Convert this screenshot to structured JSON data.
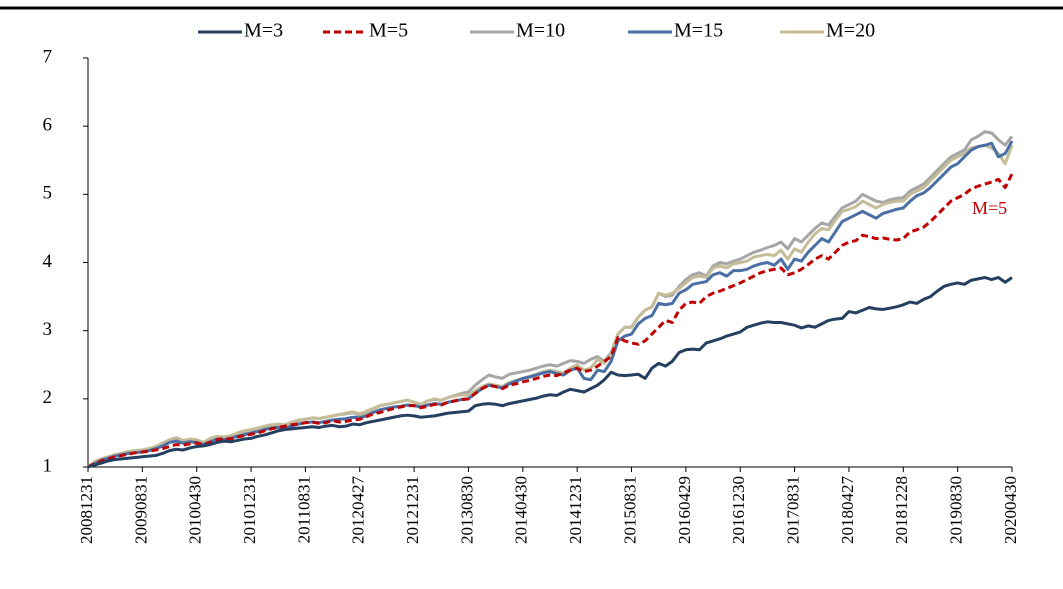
{
  "chart_data": {
    "type": "line",
    "annotation": "M=5",
    "ylim": [
      1,
      7
    ],
    "yticks": [
      1,
      2,
      3,
      4,
      5,
      6,
      7
    ],
    "categories": [
      "20081231",
      null,
      null,
      null,
      null,
      null,
      null,
      null,
      "20090831",
      null,
      null,
      null,
      null,
      null,
      null,
      null,
      "20100430",
      null,
      null,
      null,
      null,
      null,
      null,
      null,
      "20101231",
      null,
      null,
      null,
      null,
      null,
      null,
      null,
      "20110831",
      null,
      null,
      null,
      null,
      null,
      null,
      null,
      "20120427",
      null,
      null,
      null,
      null,
      null,
      null,
      null,
      "20121231",
      null,
      null,
      null,
      null,
      null,
      null,
      null,
      "20130830",
      null,
      null,
      null,
      null,
      null,
      null,
      null,
      "20140430",
      null,
      null,
      null,
      null,
      null,
      null,
      null,
      "20141231",
      null,
      null,
      null,
      null,
      null,
      null,
      null,
      "20150831",
      null,
      null,
      null,
      null,
      null,
      null,
      null,
      "20160429",
      null,
      null,
      null,
      null,
      null,
      null,
      null,
      "20161230",
      null,
      null,
      null,
      null,
      null,
      null,
      null,
      "20170831",
      null,
      null,
      null,
      null,
      null,
      null,
      null,
      "20180427",
      null,
      null,
      null,
      null,
      null,
      null,
      null,
      "20181228",
      null,
      null,
      null,
      null,
      null,
      null,
      null,
      "20190830",
      null,
      null,
      null,
      null,
      null,
      null,
      null,
      "20200430"
    ],
    "series": [
      {
        "name": "M=3",
        "color": "#243f60",
        "dashed": false,
        "values": [
          1.0,
          1.03,
          1.06,
          1.09,
          1.11,
          1.12,
          1.13,
          1.14,
          1.15,
          1.16,
          1.17,
          1.2,
          1.24,
          1.26,
          1.25,
          1.28,
          1.3,
          1.31,
          1.33,
          1.36,
          1.38,
          1.37,
          1.39,
          1.41,
          1.42,
          1.45,
          1.47,
          1.5,
          1.53,
          1.55,
          1.56,
          1.57,
          1.58,
          1.59,
          1.58,
          1.6,
          1.61,
          1.59,
          1.6,
          1.63,
          1.62,
          1.65,
          1.67,
          1.69,
          1.71,
          1.73,
          1.75,
          1.76,
          1.75,
          1.73,
          1.74,
          1.75,
          1.77,
          1.79,
          1.8,
          1.81,
          1.82,
          1.9,
          1.92,
          1.93,
          1.92,
          1.9,
          1.93,
          1.95,
          1.97,
          1.99,
          2.01,
          2.04,
          2.06,
          2.05,
          2.1,
          2.14,
          2.12,
          2.1,
          2.15,
          2.2,
          2.28,
          2.39,
          2.35,
          2.34,
          2.35,
          2.36,
          2.3,
          2.45,
          2.52,
          2.48,
          2.55,
          2.68,
          2.72,
          2.73,
          2.72,
          2.82,
          2.85,
          2.88,
          2.92,
          2.95,
          2.98,
          3.05,
          3.08,
          3.11,
          3.13,
          3.12,
          3.12,
          3.1,
          3.08,
          3.04,
          3.07,
          3.05,
          3.1,
          3.15,
          3.17,
          3.18,
          3.28,
          3.26,
          3.3,
          3.34,
          3.32,
          3.31,
          3.33,
          3.35,
          3.38,
          3.42,
          3.4,
          3.46,
          3.5,
          3.58,
          3.65,
          3.68,
          3.7,
          3.68,
          3.74,
          3.76,
          3.78,
          3.75,
          3.78,
          3.71,
          3.78
        ]
      },
      {
        "name": "M=5",
        "color": "#c00000",
        "dashed": true,
        "values": [
          1.0,
          1.05,
          1.09,
          1.12,
          1.15,
          1.17,
          1.19,
          1.21,
          1.22,
          1.23,
          1.25,
          1.27,
          1.3,
          1.33,
          1.32,
          1.34,
          1.35,
          1.33,
          1.36,
          1.4,
          1.42,
          1.41,
          1.44,
          1.46,
          1.48,
          1.5,
          1.53,
          1.56,
          1.58,
          1.6,
          1.62,
          1.63,
          1.65,
          1.66,
          1.64,
          1.65,
          1.68,
          1.66,
          1.67,
          1.69,
          1.7,
          1.74,
          1.78,
          1.8,
          1.83,
          1.86,
          1.88,
          1.9,
          1.9,
          1.87,
          1.89,
          1.92,
          1.91,
          1.95,
          1.97,
          1.99,
          2.0,
          2.08,
          2.15,
          2.2,
          2.18,
          2.15,
          2.2,
          2.22,
          2.25,
          2.27,
          2.3,
          2.33,
          2.35,
          2.34,
          2.38,
          2.42,
          2.45,
          2.4,
          2.42,
          2.48,
          2.55,
          2.62,
          2.9,
          2.85,
          2.82,
          2.8,
          2.85,
          2.95,
          3.05,
          3.15,
          3.12,
          3.3,
          3.4,
          3.42,
          3.4,
          3.5,
          3.55,
          3.58,
          3.62,
          3.66,
          3.7,
          3.75,
          3.8,
          3.85,
          3.88,
          3.9,
          3.92,
          3.82,
          3.85,
          3.9,
          3.97,
          4.05,
          4.1,
          4.05,
          4.15,
          4.25,
          4.3,
          4.32,
          4.4,
          4.38,
          4.35,
          4.36,
          4.34,
          4.33,
          4.35,
          4.45,
          4.48,
          4.52,
          4.6,
          4.7,
          4.8,
          4.9,
          4.95,
          5.0,
          5.08,
          5.12,
          5.15,
          5.18,
          5.22,
          5.1,
          5.3
        ]
      },
      {
        "name": "M=10",
        "color": "#a6a6a6",
        "dashed": false,
        "values": [
          1.0,
          1.08,
          1.12,
          1.15,
          1.18,
          1.2,
          1.22,
          1.24,
          1.25,
          1.27,
          1.3,
          1.35,
          1.4,
          1.42,
          1.38,
          1.4,
          1.38,
          1.35,
          1.4,
          1.44,
          1.43,
          1.45,
          1.48,
          1.49,
          1.5,
          1.55,
          1.58,
          1.6,
          1.62,
          1.61,
          1.65,
          1.68,
          1.7,
          1.72,
          1.71,
          1.73,
          1.75,
          1.77,
          1.78,
          1.8,
          1.75,
          1.8,
          1.85,
          1.9,
          1.92,
          1.94,
          1.96,
          1.98,
          1.95,
          1.92,
          1.97,
          1.99,
          1.98,
          2.02,
          2.05,
          2.08,
          2.1,
          2.2,
          2.28,
          2.35,
          2.32,
          2.3,
          2.36,
          2.38,
          2.4,
          2.42,
          2.45,
          2.48,
          2.5,
          2.48,
          2.52,
          2.56,
          2.55,
          2.52,
          2.58,
          2.62,
          2.55,
          2.68,
          2.95,
          3.05,
          3.05,
          3.2,
          3.3,
          3.35,
          3.55,
          3.5,
          3.52,
          3.65,
          3.75,
          3.82,
          3.85,
          3.8,
          3.95,
          4.0,
          3.98,
          4.02,
          4.05,
          4.1,
          4.15,
          4.18,
          4.22,
          4.25,
          4.3,
          4.2,
          4.35,
          4.3,
          4.4,
          4.5,
          4.58,
          4.55,
          4.68,
          4.8,
          4.85,
          4.9,
          5.0,
          4.95,
          4.9,
          4.88,
          4.92,
          4.94,
          4.95,
          5.05,
          5.1,
          5.15,
          5.25,
          5.35,
          5.45,
          5.55,
          5.6,
          5.65,
          5.8,
          5.85,
          5.92,
          5.9,
          5.8,
          5.72,
          5.85
        ]
      },
      {
        "name": "M=15",
        "color": "#4a6fa5",
        "dashed": false,
        "values": [
          1.0,
          1.05,
          1.1,
          1.13,
          1.16,
          1.18,
          1.2,
          1.21,
          1.22,
          1.24,
          1.27,
          1.31,
          1.36,
          1.38,
          1.35,
          1.37,
          1.36,
          1.33,
          1.37,
          1.41,
          1.4,
          1.42,
          1.45,
          1.47,
          1.5,
          1.52,
          1.55,
          1.57,
          1.58,
          1.57,
          1.6,
          1.63,
          1.65,
          1.66,
          1.65,
          1.67,
          1.69,
          1.7,
          1.71,
          1.73,
          1.72,
          1.75,
          1.8,
          1.84,
          1.86,
          1.88,
          1.89,
          1.91,
          1.9,
          1.88,
          1.91,
          1.93,
          1.92,
          1.95,
          1.97,
          1.99,
          2.0,
          2.08,
          2.15,
          2.2,
          2.18,
          2.16,
          2.22,
          2.26,
          2.3,
          2.32,
          2.35,
          2.38,
          2.4,
          2.37,
          2.35,
          2.42,
          2.45,
          2.3,
          2.28,
          2.42,
          2.4,
          2.55,
          2.85,
          2.92,
          2.95,
          3.1,
          3.18,
          3.22,
          3.4,
          3.38,
          3.4,
          3.55,
          3.6,
          3.68,
          3.7,
          3.72,
          3.82,
          3.85,
          3.8,
          3.88,
          3.88,
          3.9,
          3.95,
          3.98,
          4.0,
          3.96,
          4.05,
          3.9,
          4.05,
          4.02,
          4.15,
          4.25,
          4.35,
          4.3,
          4.45,
          4.6,
          4.65,
          4.7,
          4.75,
          4.7,
          4.65,
          4.72,
          4.75,
          4.78,
          4.8,
          4.9,
          4.98,
          5.02,
          5.1,
          5.2,
          5.3,
          5.4,
          5.45,
          5.55,
          5.65,
          5.7,
          5.72,
          5.75,
          5.55,
          5.6,
          5.78
        ]
      },
      {
        "name": "M=20",
        "color": "#c4bd97",
        "dashed": false,
        "values": [
          1.0,
          1.08,
          1.12,
          1.15,
          1.18,
          1.2,
          1.23,
          1.24,
          1.25,
          1.27,
          1.3,
          1.35,
          1.4,
          1.43,
          1.39,
          1.41,
          1.4,
          1.36,
          1.42,
          1.45,
          1.44,
          1.46,
          1.5,
          1.53,
          1.55,
          1.57,
          1.6,
          1.62,
          1.63,
          1.62,
          1.66,
          1.69,
          1.7,
          1.72,
          1.71,
          1.73,
          1.75,
          1.77,
          1.79,
          1.81,
          1.78,
          1.82,
          1.86,
          1.9,
          1.92,
          1.94,
          1.96,
          1.98,
          1.95,
          1.92,
          1.97,
          2.0,
          1.98,
          2.02,
          2.04,
          2.06,
          2.05,
          2.12,
          2.18,
          2.22,
          2.2,
          2.18,
          2.24,
          2.27,
          2.3,
          2.33,
          2.36,
          2.4,
          2.42,
          2.4,
          2.38,
          2.45,
          2.5,
          2.42,
          2.45,
          2.58,
          2.52,
          2.65,
          2.95,
          3.05,
          3.05,
          3.2,
          3.3,
          3.35,
          3.55,
          3.52,
          3.55,
          3.62,
          3.7,
          3.78,
          3.8,
          3.78,
          3.92,
          3.95,
          3.92,
          3.98,
          4.0,
          4.02,
          4.08,
          4.1,
          4.12,
          4.1,
          4.18,
          4.05,
          4.2,
          4.15,
          4.3,
          4.42,
          4.5,
          4.48,
          4.62,
          4.75,
          4.78,
          4.82,
          4.9,
          4.85,
          4.8,
          4.85,
          4.88,
          4.9,
          4.9,
          5.0,
          5.05,
          5.1,
          5.2,
          5.3,
          5.4,
          5.5,
          5.55,
          5.6,
          5.68,
          5.7,
          5.72,
          5.68,
          5.6,
          5.45,
          5.72
        ]
      }
    ]
  }
}
